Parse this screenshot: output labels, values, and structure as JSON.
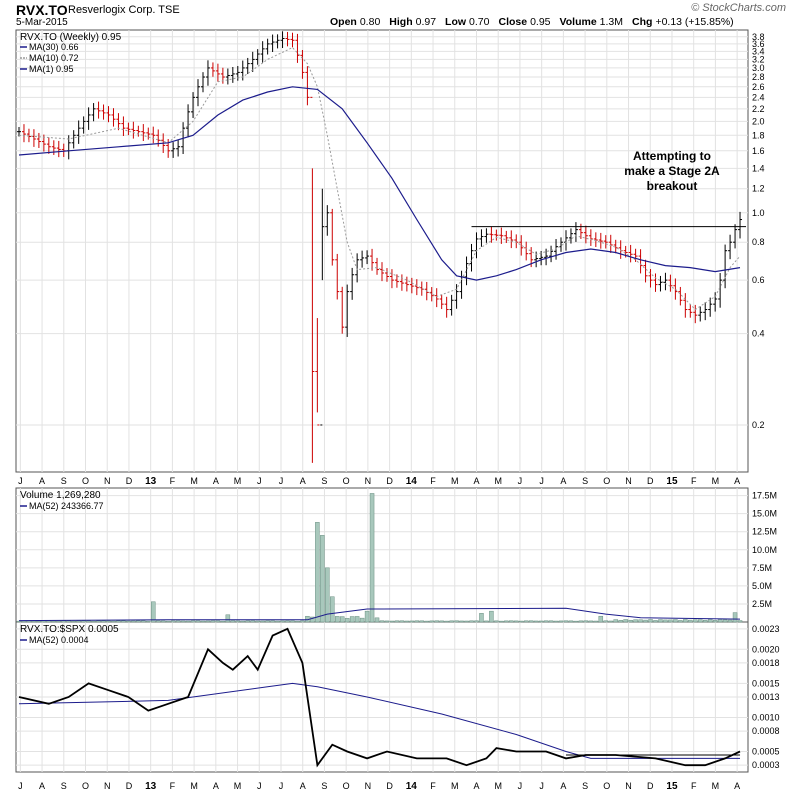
{
  "header": {
    "symbol": "RVX.TO",
    "company": "Resverlogix Corp.  TSE",
    "date": "5-Mar-2015",
    "copyright": "© StockCharts.com",
    "ohlc": [
      {
        "label": "Open",
        "value": "0.80"
      },
      {
        "label": "High",
        "value": "0.97"
      },
      {
        "label": "Low",
        "value": "0.70"
      },
      {
        "label": "Close",
        "value": "0.95"
      },
      {
        "label": "Volume",
        "value": "1.3M"
      },
      {
        "label": "Chg",
        "value": "+0.13 (+15.85%)"
      }
    ]
  },
  "colors": {
    "up": "#000000",
    "down": "#cc0000",
    "ma_long": "#1c1c8c",
    "ma_short": "#9a9a9a",
    "volume": "#a8c8bc",
    "grid": "#e2e2e2"
  },
  "chart_data": [
    {
      "type": "line",
      "title": "RVX.TO (Weekly) 0.95",
      "scale": "log",
      "legend": [
        "MA(30) 0.66",
        "MA(10) 0.72",
        "MA(1) 0.95"
      ],
      "legend_position": "top-left",
      "grid": true,
      "ylim": [
        0.14,
        4.0
      ],
      "yticks": [
        "0.2",
        "0.4",
        "0.6",
        "0.8",
        "1.0",
        "1.2",
        "1.4",
        "1.6",
        "1.8",
        "2.0",
        "2.2",
        "2.4",
        "2.6",
        "2.8",
        "3.0",
        "3.2",
        "3.4",
        "3.6",
        "3.8"
      ],
      "xticks": [
        "J",
        "A",
        "S",
        "O",
        "N",
        "D",
        "13",
        "F",
        "M",
        "A",
        "M",
        "J",
        "J",
        "A",
        "S",
        "O",
        "N",
        "D",
        "14",
        "F",
        "M",
        "A",
        "M",
        "J",
        "J",
        "A",
        "S",
        "O",
        "N",
        "D",
        "15",
        "F",
        "M",
        "A"
      ],
      "price_points": [
        [
          0,
          1.85
        ],
        [
          3,
          1.75
        ],
        [
          6,
          1.65
        ],
        [
          9,
          1.6
        ],
        [
          12,
          1.9
        ],
        [
          15,
          2.2
        ],
        [
          18,
          2.1
        ],
        [
          21,
          1.9
        ],
        [
          24,
          1.85
        ],
        [
          27,
          1.8
        ],
        [
          30,
          1.6
        ],
        [
          32,
          1.65
        ],
        [
          35,
          2.4
        ],
        [
          38,
          3.0
        ],
        [
          41,
          2.8
        ],
        [
          44,
          2.9
        ],
        [
          47,
          3.2
        ],
        [
          50,
          3.6
        ],
        [
          53,
          3.75
        ],
        [
          55,
          3.7
        ],
        [
          57,
          2.9
        ],
        [
          58,
          2.4
        ],
        [
          59,
          0.3
        ],
        [
          60,
          0.2
        ],
        [
          61,
          0.9
        ],
        [
          62,
          1.0
        ],
        [
          63,
          0.7
        ],
        [
          64,
          0.55
        ],
        [
          65,
          0.42
        ],
        [
          66,
          0.55
        ],
        [
          68,
          0.7
        ],
        [
          70,
          0.72
        ],
        [
          72,
          0.65
        ],
        [
          75,
          0.6
        ],
        [
          78,
          0.58
        ],
        [
          81,
          0.56
        ],
        [
          84,
          0.52
        ],
        [
          86,
          0.48
        ],
        [
          88,
          0.55
        ],
        [
          90,
          0.68
        ],
        [
          92,
          0.82
        ],
        [
          94,
          0.85
        ],
        [
          97,
          0.84
        ],
        [
          100,
          0.8
        ],
        [
          103,
          0.7
        ],
        [
          106,
          0.72
        ],
        [
          109,
          0.8
        ],
        [
          112,
          0.88
        ],
        [
          115,
          0.82
        ],
        [
          118,
          0.8
        ],
        [
          121,
          0.75
        ],
        [
          124,
          0.72
        ],
        [
          126,
          0.62
        ],
        [
          128,
          0.58
        ],
        [
          130,
          0.6
        ],
        [
          132,
          0.55
        ],
        [
          134,
          0.48
        ],
        [
          136,
          0.46
        ],
        [
          138,
          0.48
        ],
        [
          140,
          0.52
        ],
        [
          141,
          0.6
        ],
        [
          142,
          0.75
        ],
        [
          143,
          0.8
        ],
        [
          144,
          0.88
        ],
        [
          145,
          0.95
        ]
      ],
      "ma30": [
        [
          0,
          1.55
        ],
        [
          10,
          1.6
        ],
        [
          20,
          1.65
        ],
        [
          30,
          1.7
        ],
        [
          35,
          1.8
        ],
        [
          40,
          2.1
        ],
        [
          45,
          2.35
        ],
        [
          50,
          2.5
        ],
        [
          55,
          2.6
        ],
        [
          60,
          2.55
        ],
        [
          65,
          2.2
        ],
        [
          70,
          1.7
        ],
        [
          75,
          1.3
        ],
        [
          80,
          0.95
        ],
        [
          85,
          0.7
        ],
        [
          88,
          0.62
        ],
        [
          92,
          0.6
        ],
        [
          96,
          0.62
        ],
        [
          100,
          0.65
        ],
        [
          105,
          0.7
        ],
        [
          110,
          0.74
        ],
        [
          115,
          0.76
        ],
        [
          120,
          0.74
        ],
        [
          125,
          0.7
        ],
        [
          130,
          0.67
        ],
        [
          135,
          0.66
        ],
        [
          140,
          0.64
        ],
        [
          145,
          0.66
        ]
      ],
      "ma10": [
        [
          0,
          1.8
        ],
        [
          10,
          1.75
        ],
        [
          20,
          1.9
        ],
        [
          30,
          1.7
        ],
        [
          35,
          2.0
        ],
        [
          40,
          2.7
        ],
        [
          45,
          2.8
        ],
        [
          50,
          3.2
        ],
        [
          55,
          3.5
        ],
        [
          58,
          3.1
        ],
        [
          60,
          2.6
        ],
        [
          62,
          1.8
        ],
        [
          64,
          1.2
        ],
        [
          66,
          0.8
        ],
        [
          68,
          0.65
        ],
        [
          72,
          0.66
        ],
        [
          78,
          0.6
        ],
        [
          84,
          0.53
        ],
        [
          88,
          0.56
        ],
        [
          92,
          0.75
        ],
        [
          96,
          0.83
        ],
        [
          100,
          0.8
        ],
        [
          104,
          0.73
        ],
        [
          108,
          0.76
        ],
        [
          112,
          0.84
        ],
        [
          116,
          0.81
        ],
        [
          120,
          0.77
        ],
        [
          124,
          0.7
        ],
        [
          128,
          0.61
        ],
        [
          132,
          0.56
        ],
        [
          136,
          0.48
        ],
        [
          140,
          0.53
        ],
        [
          143,
          0.66
        ],
        [
          145,
          0.72
        ]
      ],
      "annotation": [
        "Attempting to",
        "make a Stage 2A",
        "breakout"
      ],
      "resistance": 0.9
    },
    {
      "type": "bar",
      "title": "Volume 1,269,280",
      "legend": [
        "MA(52) 243366.77"
      ],
      "ylim": [
        0,
        18000000
      ],
      "yticks": [
        "2.5M",
        "5.0M",
        "7.5M",
        "10.0M",
        "12.5M",
        "15.0M",
        "17.5M"
      ],
      "spikes": [
        [
          27,
          2800000
        ],
        [
          42,
          1000000
        ],
        [
          60,
          13800000
        ],
        [
          61,
          12000000
        ],
        [
          62,
          7500000
        ],
        [
          63,
          3500000
        ],
        [
          70,
          1500000
        ],
        [
          71,
          17800000
        ],
        [
          93,
          1200000
        ],
        [
          95,
          1500000
        ],
        [
          117,
          800000
        ],
        [
          144,
          1300000
        ]
      ],
      "ma52": [
        [
          0,
          200000
        ],
        [
          30,
          300000
        ],
        [
          58,
          300000
        ],
        [
          62,
          1100000
        ],
        [
          70,
          1800000
        ],
        [
          110,
          1900000
        ],
        [
          118,
          1100000
        ],
        [
          125,
          600000
        ],
        [
          145,
          400000
        ]
      ]
    },
    {
      "type": "line",
      "title": "RVX.TO:$SPX 0.0005",
      "legend": [
        "MA(52) 0.0004"
      ],
      "ylim": [
        0.0002,
        0.0024
      ],
      "yticks": [
        "0.0003",
        "0.0005",
        "0.0008",
        "0.0010",
        "0.0013",
        "0.0015",
        "0.0018",
        "0.0020",
        "0.0023"
      ],
      "ratio": [
        [
          0,
          0.0013
        ],
        [
          6,
          0.0012
        ],
        [
          10,
          0.0013
        ],
        [
          14,
          0.0015
        ],
        [
          18,
          0.0014
        ],
        [
          22,
          0.0013
        ],
        [
          26,
          0.0011
        ],
        [
          30,
          0.0012
        ],
        [
          34,
          0.0013
        ],
        [
          38,
          0.002
        ],
        [
          41,
          0.0018
        ],
        [
          43,
          0.0017
        ],
        [
          46,
          0.0019
        ],
        [
          48,
          0.0017
        ],
        [
          51,
          0.0022
        ],
        [
          54,
          0.0023
        ],
        [
          57,
          0.0018
        ],
        [
          60,
          0.0003
        ],
        [
          63,
          0.0006
        ],
        [
          66,
          0.0005
        ],
        [
          70,
          0.0004
        ],
        [
          74,
          0.0005
        ],
        [
          80,
          0.0004
        ],
        [
          86,
          0.0004
        ],
        [
          90,
          0.0003
        ],
        [
          94,
          0.0004
        ],
        [
          96,
          0.00055
        ],
        [
          100,
          0.0005
        ],
        [
          106,
          0.0005
        ],
        [
          110,
          0.0004
        ],
        [
          114,
          0.00045
        ],
        [
          120,
          0.00045
        ],
        [
          128,
          0.0004
        ],
        [
          134,
          0.0003
        ],
        [
          138,
          0.0003
        ],
        [
          142,
          0.0004
        ],
        [
          145,
          0.0005
        ]
      ],
      "ma52": [
        [
          0,
          0.0012
        ],
        [
          30,
          0.00125
        ],
        [
          50,
          0.00145
        ],
        [
          55,
          0.0015
        ],
        [
          60,
          0.00145
        ],
        [
          70,
          0.0013
        ],
        [
          85,
          0.00105
        ],
        [
          100,
          0.00075
        ],
        [
          110,
          0.0005
        ],
        [
          115,
          0.0004
        ],
        [
          130,
          0.0004
        ],
        [
          145,
          0.0004
        ]
      ]
    }
  ]
}
